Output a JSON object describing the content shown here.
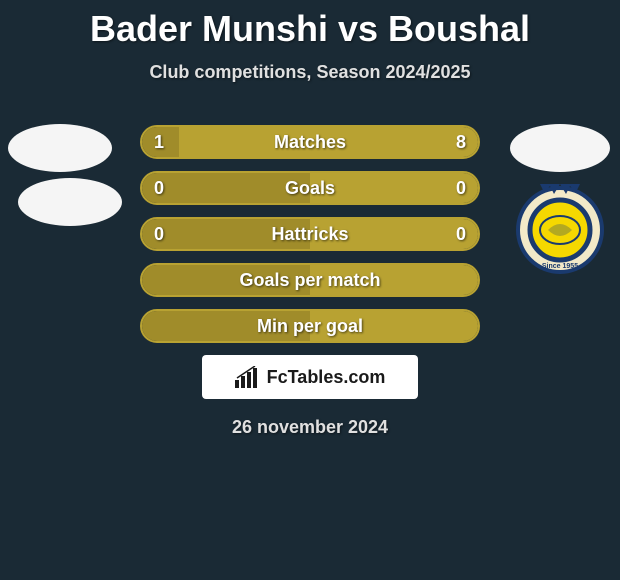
{
  "title": "Bader Munshi vs Boushal",
  "subtitle": "Club competitions, Season 2024/2025",
  "date": "26 november 2024",
  "branding": {
    "label": "FcTables.com"
  },
  "colors": {
    "background": "#1a2a35",
    "accent": "#b8a232",
    "fill_dark": "#a08c2a",
    "border": "#b8a232",
    "text": "#ffffff",
    "logo_fill": "#f5f5f5"
  },
  "logos": {
    "left": [
      "generic-oval-1",
      "generic-oval-2"
    ],
    "right": [
      "generic-oval-3",
      "al-nassr-crest"
    ]
  },
  "stats": [
    {
      "label": "Matches",
      "left_val": "1",
      "right_val": "8",
      "left_pct": 11,
      "right_pct": 89,
      "show_vals": true
    },
    {
      "label": "Goals",
      "left_val": "0",
      "right_val": "0",
      "left_pct": 50,
      "right_pct": 50,
      "show_vals": true
    },
    {
      "label": "Hattricks",
      "left_val": "0",
      "right_val": "0",
      "left_pct": 50,
      "right_pct": 50,
      "show_vals": true
    },
    {
      "label": "Goals per match",
      "left_val": "",
      "right_val": "",
      "left_pct": 50,
      "right_pct": 50,
      "show_vals": false
    },
    {
      "label": "Min per goal",
      "left_val": "",
      "right_val": "",
      "left_pct": 50,
      "right_pct": 50,
      "show_vals": false
    }
  ]
}
